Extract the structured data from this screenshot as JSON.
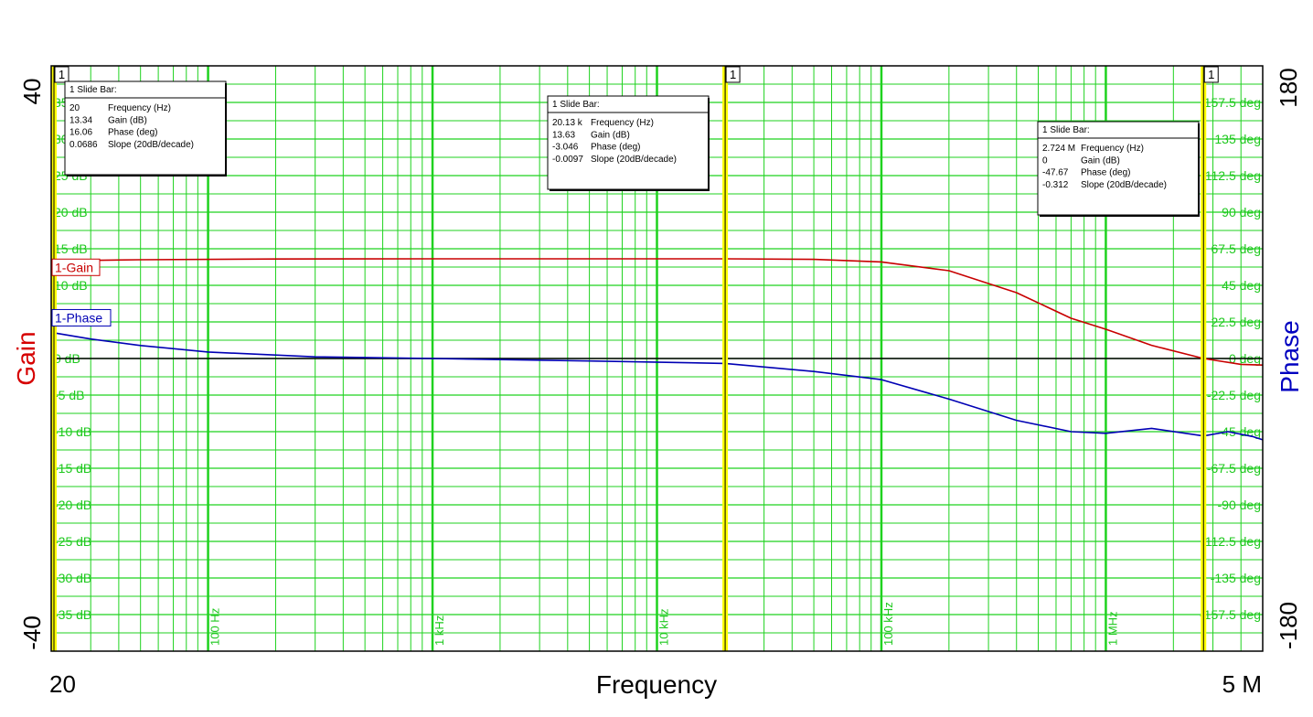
{
  "chart_data": {
    "type": "line",
    "x_scale": "log",
    "xlim": [
      20,
      5000000
    ],
    "x_range_labels": [
      "20",
      "5 M"
    ],
    "xlabel": "Frequency",
    "x_tick_labels": [
      {
        "x": 100,
        "label": "100 Hz"
      },
      {
        "x": 1000,
        "label": "1 kHz"
      },
      {
        "x": 10000,
        "label": "10 kHz"
      },
      {
        "x": 100000,
        "label": "100 kHz"
      },
      {
        "x": 1000000,
        "label": "1 MHz"
      }
    ],
    "left_axis": {
      "label": "Gain",
      "range": [
        -40,
        40
      ],
      "range_labels": [
        "40",
        "-40"
      ],
      "tick_labels": [
        {
          "v": 35,
          "label": "35 dB"
        },
        {
          "v": 30,
          "label": "30 dB"
        },
        {
          "v": 25,
          "label": "25 dB"
        },
        {
          "v": 20,
          "label": "20 dB"
        },
        {
          "v": 15,
          "label": "15 dB"
        },
        {
          "v": 10,
          "label": "10 dB"
        },
        {
          "v": 5,
          "label": "5 dB"
        },
        {
          "v": 0,
          "label": "0 dB"
        },
        {
          "v": -5,
          "label": "-5 dB"
        },
        {
          "v": -10,
          "label": "-10 dB"
        },
        {
          "v": -15,
          "label": "-15 dB"
        },
        {
          "v": -20,
          "label": "-20 dB"
        },
        {
          "v": -25,
          "label": "-25 dB"
        },
        {
          "v": -30,
          "label": "-30 dB"
        },
        {
          "v": -35,
          "label": "-35 dB"
        }
      ]
    },
    "right_axis": {
      "label": "Phase",
      "range": [
        -180,
        180
      ],
      "range_labels": [
        "180",
        "-180"
      ],
      "tick_labels": [
        {
          "v": 157.5,
          "label": "157.5 deg"
        },
        {
          "v": 135,
          "label": "135 deg"
        },
        {
          "v": 112.5,
          "label": "112.5 deg"
        },
        {
          "v": 90,
          "label": "90 deg"
        },
        {
          "v": 67.5,
          "label": "67.5 deg"
        },
        {
          "v": 45,
          "label": "45 deg"
        },
        {
          "v": 22.5,
          "label": "22.5 deg"
        },
        {
          "v": 0,
          "label": "0 deg"
        },
        {
          "v": -22.5,
          "label": "-22.5 deg"
        },
        {
          "v": -45,
          "label": "-45 deg"
        },
        {
          "v": -67.5,
          "label": "-67.5 deg"
        },
        {
          "v": -90,
          "label": "-90 deg"
        },
        {
          "v": -112.5,
          "label": "-112.5 deg"
        },
        {
          "v": -135,
          "label": "-135 deg"
        },
        {
          "v": -157.5,
          "label": "-157.5 deg"
        }
      ]
    },
    "series": [
      {
        "name": "1-Gain",
        "axis": "left",
        "color": "#c80000",
        "points": [
          [
            20,
            13.34
          ],
          [
            50,
            13.5
          ],
          [
            200,
            13.6
          ],
          [
            1000,
            13.62
          ],
          [
            5000,
            13.63
          ],
          [
            20130,
            13.63
          ],
          [
            50000,
            13.55
          ],
          [
            100000,
            13.2
          ],
          [
            200000,
            12.0
          ],
          [
            400000,
            9.0
          ],
          [
            700000,
            5.5
          ],
          [
            1000000,
            4.0
          ],
          [
            1600000,
            1.8
          ],
          [
            2724000,
            0.0
          ],
          [
            4000000,
            -0.8
          ],
          [
            5000000,
            -0.9
          ]
        ]
      },
      {
        "name": "1-Phase",
        "axis": "right",
        "color": "#0000b4",
        "points": [
          [
            20,
            16.06
          ],
          [
            30,
            12
          ],
          [
            50,
            8
          ],
          [
            100,
            4
          ],
          [
            300,
            1
          ],
          [
            1000,
            0
          ],
          [
            5000,
            -1.5
          ],
          [
            20130,
            -3.046
          ],
          [
            50000,
            -8
          ],
          [
            100000,
            -13
          ],
          [
            200000,
            -25
          ],
          [
            400000,
            -38
          ],
          [
            700000,
            -45
          ],
          [
            1000000,
            -46
          ],
          [
            1600000,
            -43
          ],
          [
            2724000,
            -47.67
          ],
          [
            3500000,
            -45
          ],
          [
            4500000,
            -48
          ],
          [
            5000000,
            -50
          ]
        ]
      }
    ],
    "legend_labels": [
      "1-Gain",
      "1-Phase"
    ],
    "markers": [
      {
        "id": "1",
        "x": 20,
        "box": {
          "title": "1  Slide Bar:",
          "rows": [
            {
              "value": "20",
              "label": "Frequency (Hz)"
            },
            {
              "value": "13.34",
              "label": "Gain (dB)"
            },
            {
              "value": "16.06",
              "label": "Phase (deg)"
            },
            {
              "value": "0.0686",
              "label": "Slope (20dB/decade)"
            }
          ]
        }
      },
      {
        "id": "1",
        "x": 20130,
        "box": {
          "title": "1  Slide Bar:",
          "rows": [
            {
              "value": "20.13 k",
              "label": "Frequency (Hz)"
            },
            {
              "value": "13.63",
              "label": "Gain (dB)"
            },
            {
              "value": "-3.046",
              "label": "Phase (deg)"
            },
            {
              "value": "-0.0097",
              "label": "Slope (20dB/decade)"
            }
          ]
        }
      },
      {
        "id": "1",
        "x": 2724000,
        "box": {
          "title": "1  Slide Bar:",
          "rows": [
            {
              "value": "2.724 M",
              "label": "Frequency (Hz)"
            },
            {
              "value": "0",
              "label": "Gain (dB)"
            },
            {
              "value": "-47.67",
              "label": "Phase (deg)"
            },
            {
              "value": "-0.312",
              "label": "Slope (20dB/decade)"
            }
          ]
        }
      }
    ],
    "grid": true,
    "colors": {
      "grid": "#1fd21f",
      "gain": "#c80000",
      "phase": "#0000b4",
      "marker": "#ffff00",
      "zero_line": "#000000"
    }
  }
}
